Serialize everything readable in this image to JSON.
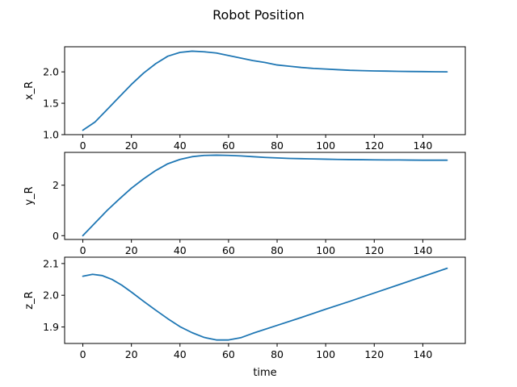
{
  "chart_data": {
    "title": "Robot Position",
    "type": "line",
    "colors": {
      "line": "#1f77b4"
    },
    "grid": false,
    "panels": [
      {
        "xlabel": "",
        "ylabel": "x_R",
        "xlim": [
          -7.5,
          157.5
        ],
        "ylim": [
          1.0,
          2.4
        ],
        "xticks": [
          0,
          20,
          40,
          60,
          80,
          100,
          120,
          140
        ],
        "yticks": [
          1.0,
          1.5,
          2.0
        ],
        "ytick_labels": [
          "1.0",
          "1.5",
          "2.0"
        ],
        "x": [
          0,
          5,
          10,
          15,
          20,
          25,
          30,
          35,
          40,
          45,
          50,
          55,
          60,
          65,
          70,
          75,
          80,
          85,
          90,
          95,
          100,
          105,
          110,
          115,
          120,
          125,
          130,
          135,
          140,
          145,
          150
        ],
        "y": [
          1.07,
          1.2,
          1.4,
          1.6,
          1.8,
          1.98,
          2.13,
          2.25,
          2.31,
          2.33,
          2.32,
          2.3,
          2.26,
          2.22,
          2.18,
          2.15,
          2.11,
          2.09,
          2.07,
          2.055,
          2.045,
          2.035,
          2.025,
          2.02,
          2.015,
          2.012,
          2.008,
          2.006,
          2.004,
          2.002,
          2.0
        ]
      },
      {
        "xlabel": "",
        "ylabel": "y_R",
        "xlim": [
          -7.5,
          157.5
        ],
        "ylim": [
          -0.15,
          3.3
        ],
        "xticks": [
          0,
          20,
          40,
          60,
          80,
          100,
          120,
          140
        ],
        "yticks": [
          0,
          2
        ],
        "ytick_labels": [
          "0",
          "2"
        ],
        "x": [
          0,
          5,
          10,
          15,
          20,
          25,
          30,
          35,
          40,
          45,
          50,
          55,
          60,
          65,
          70,
          75,
          80,
          85,
          90,
          95,
          100,
          105,
          110,
          115,
          120,
          125,
          130,
          135,
          140,
          145,
          150
        ],
        "y": [
          0.0,
          0.5,
          1.0,
          1.45,
          1.88,
          2.25,
          2.58,
          2.85,
          3.02,
          3.13,
          3.18,
          3.19,
          3.18,
          3.16,
          3.13,
          3.1,
          3.08,
          3.06,
          3.05,
          3.04,
          3.03,
          3.02,
          3.015,
          3.01,
          3.005,
          3.0,
          3.0,
          2.995,
          2.99,
          2.99,
          2.99
        ]
      },
      {
        "xlabel": "time",
        "ylabel": "z_R",
        "xlim": [
          -7.5,
          157.5
        ],
        "ylim": [
          1.848,
          2.12
        ],
        "xticks": [
          0,
          20,
          40,
          60,
          80,
          100,
          120,
          140
        ],
        "yticks": [
          1.9,
          2.0,
          2.1
        ],
        "ytick_labels": [
          "1.9",
          "2.0",
          "2.1"
        ],
        "x": [
          0,
          4,
          8,
          12,
          16,
          20,
          25,
          30,
          35,
          40,
          45,
          50,
          55,
          60,
          65,
          70,
          80,
          90,
          100,
          110,
          120,
          130,
          140,
          150
        ],
        "y": [
          2.06,
          2.066,
          2.062,
          2.05,
          2.032,
          2.01,
          1.981,
          1.953,
          1.926,
          1.901,
          1.882,
          1.867,
          1.859,
          1.859,
          1.866,
          1.88,
          1.905,
          1.93,
          1.956,
          1.981,
          2.007,
          2.033,
          2.059,
          2.085
        ]
      }
    ]
  }
}
